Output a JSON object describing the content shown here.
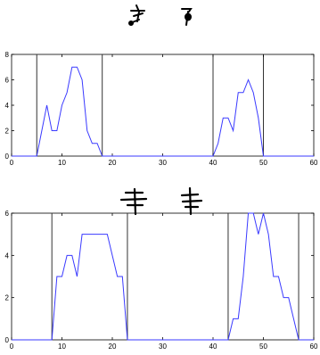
{
  "colors": {
    "series": "#3a3aff",
    "axis": "#000000",
    "marker": "#333333",
    "glyph": "#000000"
  },
  "glyph_icons": {
    "top": [
      "handwritten-glyph-icon",
      "handwritten-glyph-icon"
    ],
    "bottom": [
      "handwritten-glyph-icon",
      "handwritten-glyph-icon"
    ]
  },
  "chart_data": [
    {
      "type": "line",
      "title": "",
      "xlabel": "",
      "ylabel": "",
      "xlim": [
        0,
        60
      ],
      "ylim": [
        0,
        8
      ],
      "x_ticks": [
        0,
        10,
        20,
        30,
        40,
        50,
        60
      ],
      "y_ticks": [
        0,
        2,
        4,
        6,
        8
      ],
      "grid": false,
      "vertical_markers": [
        5,
        18,
        40,
        50
      ],
      "series": [
        {
          "x": [
            0,
            5,
            6,
            7,
            8,
            9,
            10,
            11,
            12,
            13,
            14,
            15,
            16,
            17,
            18,
            19,
            20,
            30,
            39,
            40,
            41,
            42,
            43,
            44,
            45,
            46,
            47,
            48,
            49,
            50,
            51,
            60
          ],
          "y": [
            0,
            0,
            2,
            4,
            2,
            2,
            4,
            5,
            7,
            7,
            6,
            2,
            1,
            1,
            0,
            0,
            0,
            0,
            0,
            0,
            1,
            3,
            3,
            2,
            5,
            5,
            6,
            5,
            3,
            0,
            0,
            0
          ]
        }
      ]
    },
    {
      "type": "line",
      "title": "",
      "xlabel": "",
      "ylabel": "",
      "xlim": [
        0,
        60
      ],
      "ylim": [
        0,
        6
      ],
      "x_ticks": [
        0,
        10,
        20,
        30,
        40,
        50,
        60
      ],
      "y_ticks": [
        0,
        2,
        4,
        6
      ],
      "grid": false,
      "vertical_markers": [
        8,
        23,
        43,
        57
      ],
      "series": [
        {
          "x": [
            0,
            8,
            9,
            10,
            11,
            12,
            13,
            14,
            15,
            16,
            17,
            18,
            19,
            20,
            21,
            22,
            23,
            24,
            30,
            42,
            43,
            44,
            45,
            46,
            47,
            48,
            49,
            50,
            51,
            52,
            53,
            54,
            55,
            56,
            57,
            60
          ],
          "y": [
            0,
            0,
            3,
            3,
            4,
            4,
            3,
            5,
            5,
            5,
            5,
            5,
            5,
            4,
            3,
            3,
            0,
            0,
            0,
            0,
            0,
            1,
            1,
            3,
            6,
            6,
            5,
            6,
            5,
            3,
            3,
            2,
            2,
            1,
            0,
            0
          ]
        }
      ]
    }
  ]
}
